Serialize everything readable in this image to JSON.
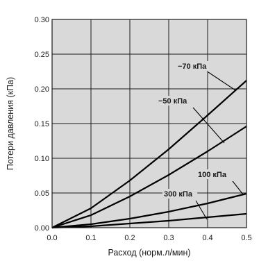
{
  "chart_data": {
    "type": "line",
    "xlabel": "Расход (норм.л/мин)",
    "ylabel": "Потери давления (кПа)",
    "xlim": [
      0,
      0.5
    ],
    "ylim": [
      0,
      0.3
    ],
    "x_ticks": [
      "0.0",
      "0.1",
      "0.2",
      "0.3",
      "0.4",
      "0.5"
    ],
    "y_ticks": [
      "0.00",
      "0.05",
      "0.10",
      "0.15",
      "0.20",
      "0.25",
      "0.30"
    ],
    "grid": true,
    "colors": {
      "background": "#d9d9d9",
      "grid": "#1a1a1a",
      "line": "#000000"
    },
    "series": [
      {
        "name": "−70 кПа",
        "x": [
          0,
          0.1,
          0.2,
          0.3,
          0.4,
          0.5
        ],
        "y": [
          0,
          0.028,
          0.068,
          0.113,
          0.162,
          0.212
        ]
      },
      {
        "name": "−50 кПа",
        "x": [
          0,
          0.1,
          0.2,
          0.3,
          0.4,
          0.5
        ],
        "y": [
          0,
          0.018,
          0.045,
          0.076,
          0.11,
          0.146
        ]
      },
      {
        "name": "100 кПа",
        "x": [
          0,
          0.1,
          0.2,
          0.3,
          0.4,
          0.5
        ],
        "y": [
          0,
          0.005,
          0.013,
          0.023,
          0.035,
          0.049
        ]
      },
      {
        "name": "300 кПа",
        "x": [
          0,
          0.1,
          0.2,
          0.3,
          0.4,
          0.5
        ],
        "y": [
          0,
          0.002,
          0.006,
          0.01,
          0.015,
          0.02
        ]
      }
    ]
  }
}
